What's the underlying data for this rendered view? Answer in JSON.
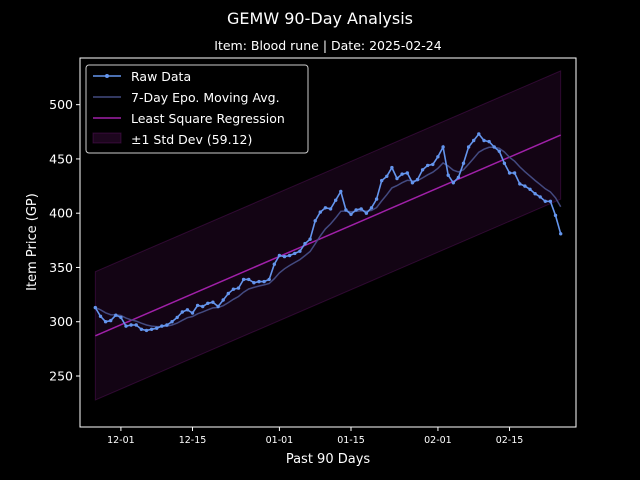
{
  "chart_data": {
    "type": "line",
    "title": "GEMW 90-Day Analysis",
    "subtitle": "Item: Blood rune | Date: 2025-02-24",
    "xlabel": "Past 90 Days",
    "ylabel": "Item Price (GP)",
    "x_range": [
      "2024-11-23",
      "2025-02-28"
    ],
    "ylim": [
      203,
      543
    ],
    "grid": false,
    "legend_position": "top-left",
    "x_ticks": [
      {
        "date": "2024-12-01",
        "label": "12-01"
      },
      {
        "date": "2024-12-15",
        "label": "12-15"
      },
      {
        "date": "2025-01-01",
        "label": "01-01"
      },
      {
        "date": "2025-01-15",
        "label": "01-15"
      },
      {
        "date": "2025-02-01",
        "label": "02-01"
      },
      {
        "date": "2025-02-15",
        "label": "02-15"
      }
    ],
    "y_ticks": [
      250,
      300,
      350,
      400,
      450,
      500
    ],
    "start_date": "2024-11-26",
    "raw_values": [
      313,
      305,
      300,
      301,
      306,
      304,
      296,
      297,
      297,
      293,
      292,
      293,
      294,
      296,
      297,
      300,
      304,
      309,
      311,
      308,
      315,
      314,
      317,
      318,
      314,
      320,
      326,
      330,
      331,
      339,
      339,
      336,
      337,
      337,
      339,
      353,
      361,
      360,
      361,
      363,
      365,
      372,
      376,
      393,
      401,
      405,
      404,
      412,
      420,
      403,
      399,
      403,
      404,
      400,
      405,
      413,
      430,
      434,
      442,
      432,
      436,
      437,
      428,
      431,
      440,
      444,
      445,
      452,
      461,
      435,
      428,
      433,
      446,
      461,
      467,
      473,
      467,
      466,
      461,
      457,
      446,
      437,
      437,
      427,
      425,
      422,
      418,
      415,
      411,
      411,
      398,
      381
    ],
    "series": [
      {
        "name": "Raw Data",
        "key": "raw",
        "color": "#6495ed"
      },
      {
        "name": "7-Day Epo. Moving Avg.",
        "key": "ema",
        "color": "#434a80"
      },
      {
        "name": "Least Square Regression",
        "key": "lsr",
        "color": "#a020a8"
      },
      {
        "name": "±1 Std Dev (59.12)",
        "key": "band",
        "color": "#a020a8"
      }
    ],
    "regression": {
      "start": 287,
      "end": 472
    },
    "std_dev": 59.12
  }
}
